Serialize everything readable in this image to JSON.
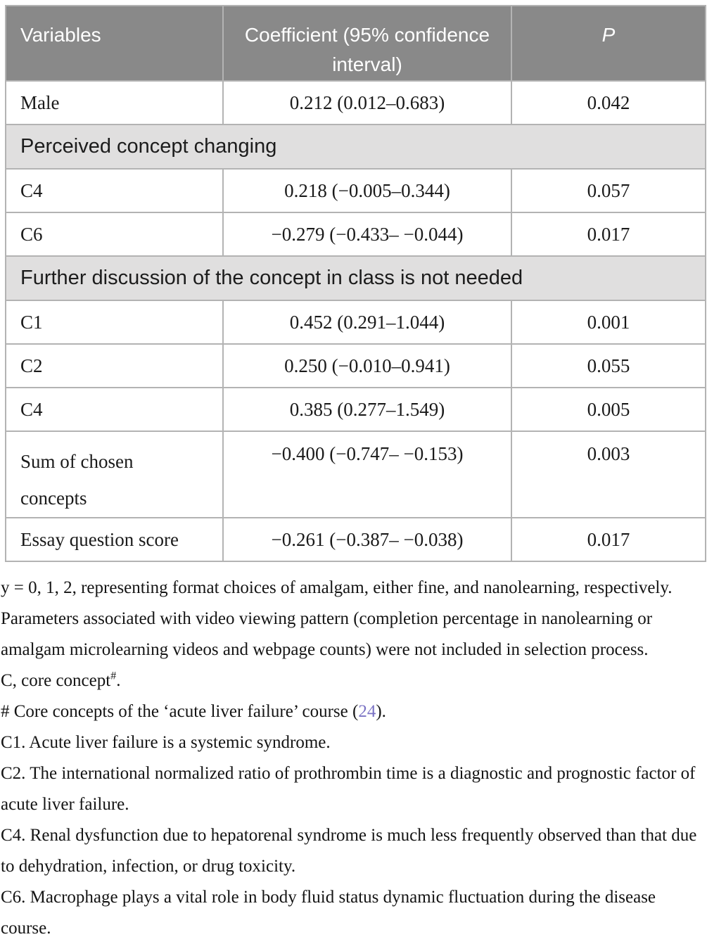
{
  "table": {
    "header": {
      "variables": "Variables",
      "coefficient": "Coefficient (95% confidence interval)",
      "p": "P"
    },
    "rows": [
      {
        "variable": "Male",
        "coefficient": "0.212 (0.012–0.683)",
        "p": "0.042"
      },
      {
        "section": "Perceived concept changing"
      },
      {
        "variable": "C4",
        "coefficient": "0.218 (−0.005–0.344)",
        "p": "0.057"
      },
      {
        "variable": "C6",
        "coefficient": "−0.279 (−0.433– −0.044)",
        "p": "0.017"
      },
      {
        "section": "Further discussion of the concept in class is not needed"
      },
      {
        "variable": "C1",
        "coefficient": "0.452 (0.291–1.044)",
        "p": "0.001"
      },
      {
        "variable": "C2",
        "coefficient": "0.250 (−0.010–0.941)",
        "p": "0.055"
      },
      {
        "variable": "C4",
        "coefficient": "0.385 (0.277–1.549)",
        "p": "0.005"
      },
      {
        "variable": "Sum of chosen concepts",
        "coefficient": "−0.400 (−0.747– −0.153)",
        "p": "0.003"
      },
      {
        "variable": "Essay question score",
        "coefficient": "−0.261 (−0.387– −0.038)",
        "p": "0.017"
      }
    ]
  },
  "footnotes": {
    "f1": "y = 0, 1, 2, representing format choices of amalgam, either fine, and nanolearning, respectively.",
    "f2": "Parameters associated with video viewing pattern (completion percentage in nanolearning or amalgam microlearning videos and webpage counts) were not included in selection process.",
    "f3_text": "C, core concept",
    "f3_sup": "#",
    "f3_period": ".",
    "f4_prefix": "# Core concepts of the ‘acute liver failure’ course (",
    "f4_link": "24",
    "f4_suffix": ").",
    "c1": "C1. Acute liver failure is a systemic syndrome.",
    "c2": "C2. The international normalized ratio of prothrombin time is a diagnostic and prognostic factor of acute liver failure.",
    "c4": "C4. Renal dysfunction due to hepatorenal syndrome is much less frequently observed than that due to dehydration, infection, or drug toxicity.",
    "c6": "C6. Macrophage plays a vital role in body fluid status dynamic fluctuation during the disease course."
  },
  "colors": {
    "header_bg": "#898989",
    "header_text": "#ffffff",
    "section_bg": "#e0dfdf",
    "border": "#b3b3b3",
    "link": "#7a72c4"
  },
  "chart_data": {
    "type": "table",
    "title": "",
    "columns": [
      "Variables",
      "Coefficient (95% confidence interval)",
      "P"
    ],
    "sections": [
      {
        "name": "",
        "rows": [
          [
            "Male",
            "0.212 (0.012–0.683)",
            "0.042"
          ]
        ]
      },
      {
        "name": "Perceived concept changing",
        "rows": [
          [
            "C4",
            "0.218 (−0.005–0.344)",
            "0.057"
          ],
          [
            "C6",
            "−0.279 (−0.433– −0.044)",
            "0.017"
          ]
        ]
      },
      {
        "name": "Further discussion of the concept in class is not needed",
        "rows": [
          [
            "C1",
            "0.452 (0.291–1.044)",
            "0.001"
          ],
          [
            "C2",
            "0.250 (−0.010–0.941)",
            "0.055"
          ],
          [
            "C4",
            "0.385 (0.277–1.549)",
            "0.005"
          ],
          [
            "Sum of chosen concepts",
            "−0.400 (−0.747– −0.153)",
            "0.003"
          ],
          [
            "Essay question score",
            "−0.261 (−0.387– −0.038)",
            "0.017"
          ]
        ]
      }
    ]
  }
}
